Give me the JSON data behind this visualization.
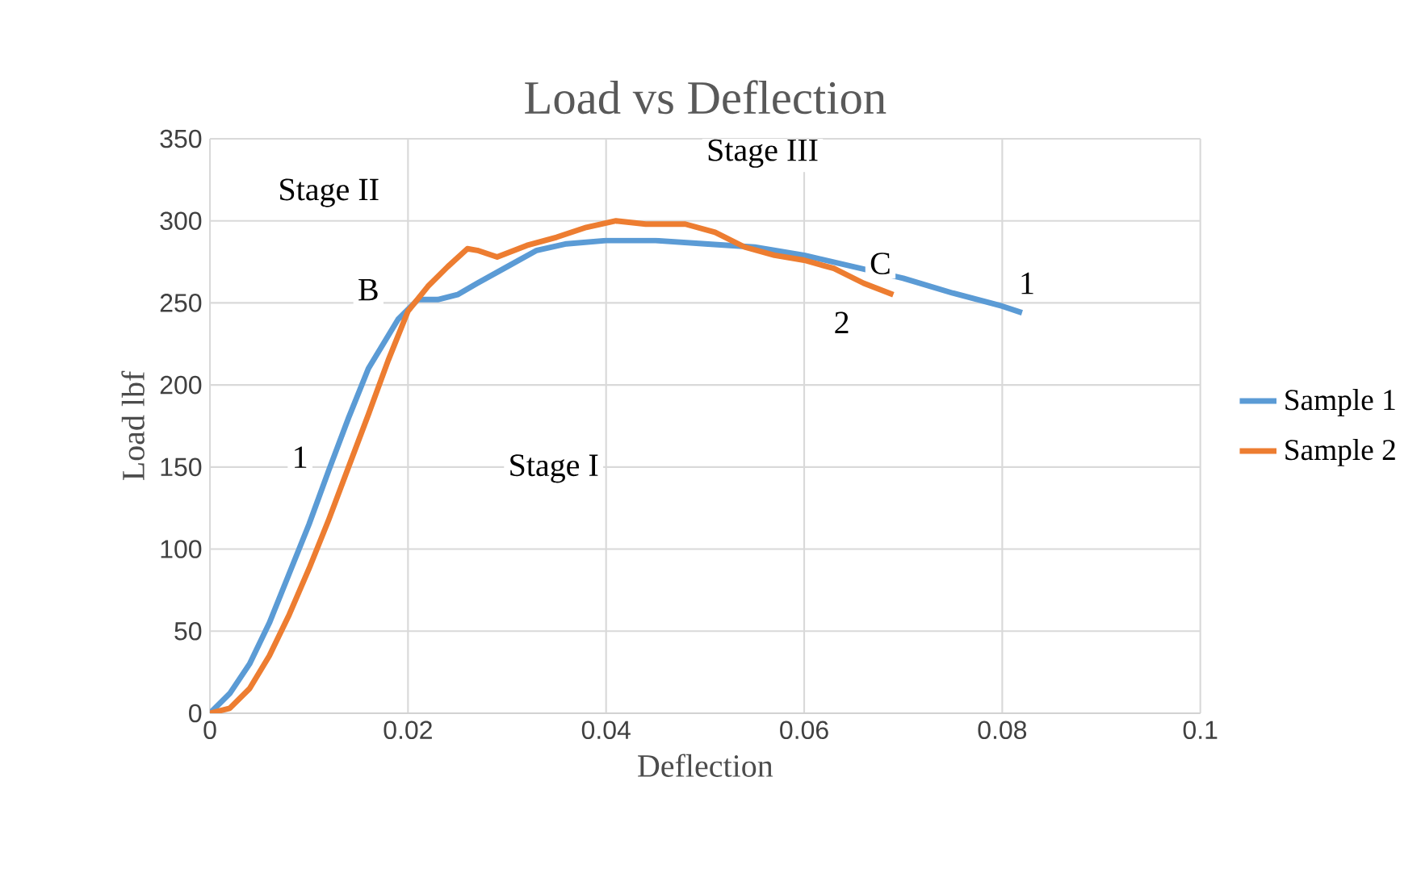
{
  "chart_data": {
    "type": "line",
    "title": "Load vs Deflection",
    "xlabel": "Deflection",
    "ylabel": "Load lbf",
    "xlim": [
      0,
      0.1
    ],
    "xticks": [
      0,
      0.02,
      0.04,
      0.06,
      0.08,
      0.1
    ],
    "ylim": [
      0,
      350
    ],
    "yticks": [
      0,
      50,
      100,
      150,
      200,
      250,
      300,
      350
    ],
    "grid": true,
    "legend": "right",
    "marker": "none",
    "series": [
      {
        "name": "Sample 1",
        "color": "#5b9bd5",
        "x": [
          0,
          0.002,
          0.004,
          0.006,
          0.008,
          0.01,
          0.012,
          0.014,
          0.016,
          0.019,
          0.021,
          0.023,
          0.025,
          0.027,
          0.03,
          0.033,
          0.036,
          0.04,
          0.045,
          0.05,
          0.055,
          0.06,
          0.065,
          0.07,
          0.075,
          0.08,
          0.082
        ],
        "values": [
          0,
          12,
          30,
          55,
          85,
          115,
          148,
          180,
          210,
          240,
          252,
          252,
          255,
          262,
          272,
          282,
          286,
          288,
          288,
          286,
          284,
          279,
          272,
          265,
          256,
          248,
          244
        ]
      },
      {
        "name": "Sample 2",
        "color": "#ed7d31",
        "x": [
          0,
          0.002,
          0.004,
          0.006,
          0.008,
          0.01,
          0.012,
          0.014,
          0.016,
          0.018,
          0.02,
          0.022,
          0.024,
          0.026,
          0.027,
          0.029,
          0.032,
          0.035,
          0.038,
          0.041,
          0.044,
          0.048,
          0.051,
          0.054,
          0.057,
          0.06,
          0.063,
          0.066,
          0.069
        ],
        "values": [
          0,
          3,
          15,
          35,
          60,
          88,
          118,
          150,
          182,
          215,
          245,
          260,
          272,
          283,
          282,
          278,
          285,
          290,
          296,
          300,
          298,
          298,
          293,
          284,
          279,
          276,
          271,
          262,
          255
        ]
      }
    ],
    "annotations": [
      "Stage I",
      "Stage II",
      "Stage III",
      {
        "text": "B",
        "x": 0.016,
        "y": 258
      },
      {
        "text": "C",
        "x": 0.0677,
        "y": 274
      },
      {
        "text": "1",
        "x": 0.0091,
        "y": 156
      },
      {
        "text": "1",
        "x": 0.0825,
        "y": 262
      },
      {
        "text": "2",
        "x": 0.0638,
        "y": 238
      }
    ]
  }
}
